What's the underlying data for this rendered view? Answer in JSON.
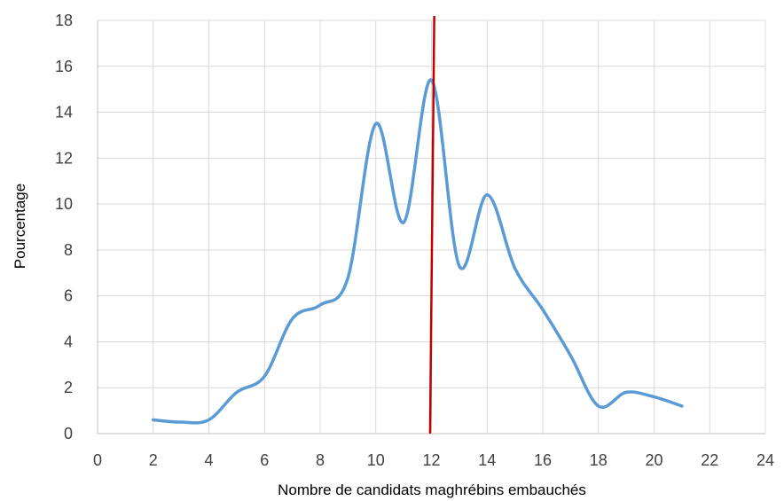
{
  "chart_data": {
    "type": "line",
    "xlabel": "Nombre de candidats maghrébins embauchés",
    "ylabel": "Pourcentage",
    "xlim": [
      0,
      24
    ],
    "ylim": [
      0,
      18
    ],
    "xticks": [
      "0",
      "2",
      "4",
      "6",
      "8",
      "10",
      "12",
      "14",
      "16",
      "18",
      "20",
      "22",
      "24"
    ],
    "yticks": [
      "0",
      "2",
      "4",
      "6",
      "8",
      "10",
      "12",
      "14",
      "16",
      "18"
    ],
    "grid": true,
    "series": [
      {
        "color": "#5B9BD5",
        "smooth": true,
        "x": [
          2,
          3,
          4,
          5,
          6,
          7,
          8,
          9,
          10,
          11,
          12,
          13,
          14,
          15,
          16,
          17,
          18,
          19,
          20,
          21
        ],
        "y": [
          0.6,
          0.5,
          0.6,
          1.8,
          2.5,
          5.0,
          5.6,
          6.8,
          13.5,
          9.2,
          15.4,
          7.3,
          10.4,
          7.2,
          5.4,
          3.4,
          1.2,
          1.8,
          1.6,
          1.2
        ]
      }
    ],
    "annotations": [
      {
        "type": "vertical-line",
        "color": "#C00000",
        "x_bottom": 11.95,
        "x_top": 12.1
      }
    ]
  }
}
